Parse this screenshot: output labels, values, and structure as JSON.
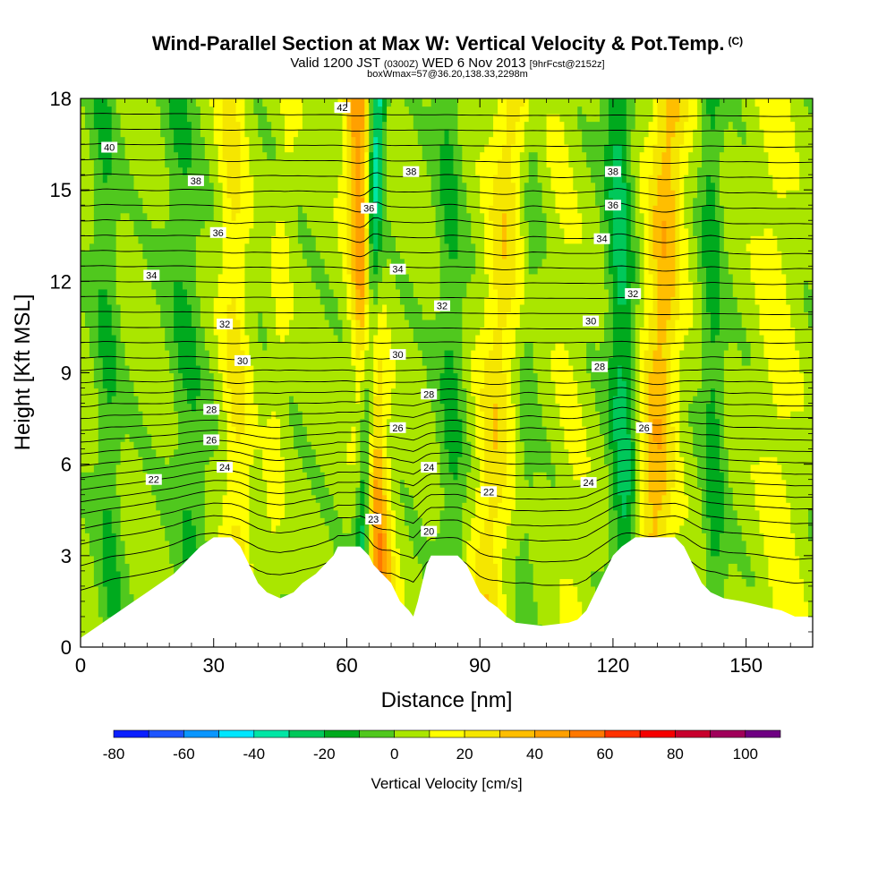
{
  "header": {
    "title": "Wind-Parallel Section at Max W: Vertical Velocity & Pot.Temp.",
    "copyright": "(C)",
    "valid_prefix": "Valid 1200 JST",
    "valid_utc": "(0300Z)",
    "valid_date": "WED 6 Nov 2013",
    "forecast": "[9hrFcst@2152z]",
    "box_info": "boxWmax=57@36.20,138.33,2298m"
  },
  "chart_data": {
    "type": "heatmap",
    "xlabel": "Distance [nm]",
    "ylabel": "Height [Kft MSL]",
    "xlim": [
      0,
      165
    ],
    "ylim": [
      0,
      18
    ],
    "x_ticks": [
      "0",
      "30",
      "60",
      "90",
      "120",
      "150"
    ],
    "y_ticks": [
      "0",
      "3",
      "6",
      "9",
      "12",
      "15",
      "18"
    ],
    "colorbar": {
      "title": "Vertical Velocity [cm/s]",
      "ticks": [
        "-80",
        "-60",
        "-40",
        "-20",
        "0",
        "20",
        "40",
        "60",
        "80",
        "100"
      ],
      "bins": [
        {
          "lo": -80,
          "hi": -70,
          "color": "#0a1fff"
        },
        {
          "lo": -70,
          "hi": -60,
          "color": "#1e55ff"
        },
        {
          "lo": -60,
          "hi": -50,
          "color": "#0a96ff"
        },
        {
          "lo": -50,
          "hi": -40,
          "color": "#00e6ff"
        },
        {
          "lo": -40,
          "hi": -30,
          "color": "#00e6a5"
        },
        {
          "lo": -30,
          "hi": -20,
          "color": "#00c85a"
        },
        {
          "lo": -20,
          "hi": -10,
          "color": "#00aa1e"
        },
        {
          "lo": -10,
          "hi": 0,
          "color": "#50c81e"
        },
        {
          "lo": 0,
          "hi": 10,
          "color": "#aae600"
        },
        {
          "lo": 10,
          "hi": 20,
          "color": "#ffff00"
        },
        {
          "lo": 20,
          "hi": 30,
          "color": "#f5e600"
        },
        {
          "lo": 30,
          "hi": 40,
          "color": "#ffbe00"
        },
        {
          "lo": 40,
          "hi": 50,
          "color": "#ffa000"
        },
        {
          "lo": 50,
          "hi": 60,
          "color": "#ff7800"
        },
        {
          "lo": 60,
          "hi": 70,
          "color": "#ff3200"
        },
        {
          "lo": 70,
          "hi": 80,
          "color": "#f50000"
        },
        {
          "lo": 80,
          "hi": 90,
          "color": "#c8002d"
        },
        {
          "lo": 90,
          "hi": 100,
          "color": "#a0005a"
        },
        {
          "lo": 100,
          "hi": 110,
          "color": "#6e0082"
        }
      ]
    },
    "updraft_bands": [
      {
        "x_base": 36,
        "x_top": 34,
        "strength": 18,
        "width": 3
      },
      {
        "x_base": 68,
        "x_top": 62,
        "strength": 45,
        "width": 3
      },
      {
        "x_base": 91,
        "x_top": 97,
        "strength": 22,
        "width": 4
      },
      {
        "x_base": 128,
        "x_top": 133,
        "strength": 32,
        "width": 4
      },
      {
        "x_base": 42,
        "x_top": 47,
        "strength": 8,
        "width": 2
      },
      {
        "x_base": 158,
        "x_top": 156,
        "strength": 10,
        "width": 4
      },
      {
        "x_base": 112,
        "x_top": 108,
        "strength": 6,
        "width": 3
      }
    ],
    "downdraft_bands": [
      {
        "x_base": 63,
        "x_top": 67,
        "strength": -45,
        "width": 1.8
      },
      {
        "x_base": 123,
        "x_top": 121,
        "strength": -28,
        "width": 3
      },
      {
        "x_base": 84,
        "x_top": 83,
        "strength": -15,
        "width": 3
      },
      {
        "x_base": 26,
        "x_top": 22,
        "strength": -14,
        "width": 4
      },
      {
        "x_base": 7,
        "x_top": 5,
        "strength": -14,
        "width": 3
      },
      {
        "x_base": 143,
        "x_top": 142,
        "strength": -18,
        "width": 2.5
      },
      {
        "x_base": 100,
        "x_top": 102,
        "strength": -8,
        "width": 2
      }
    ],
    "terrain_kft": [
      [
        0,
        0.3
      ],
      [
        3,
        0.6
      ],
      [
        6,
        0.9
      ],
      [
        9,
        1.2
      ],
      [
        12,
        1.5
      ],
      [
        15,
        1.8
      ],
      [
        18,
        2.1
      ],
      [
        21,
        2.4
      ],
      [
        23,
        2.7
      ],
      [
        25,
        3.0
      ],
      [
        27,
        3.3
      ],
      [
        30,
        3.6
      ],
      [
        34,
        3.6
      ],
      [
        36,
        3.3
      ],
      [
        38,
        2.7
      ],
      [
        39,
        2.4
      ],
      [
        40,
        2.1
      ],
      [
        42,
        1.8
      ],
      [
        45,
        1.6
      ],
      [
        48,
        1.8
      ],
      [
        50,
        2.1
      ],
      [
        53,
        2.4
      ],
      [
        55,
        2.7
      ],
      [
        57,
        3.0
      ],
      [
        58,
        3.3
      ],
      [
        63,
        3.3
      ],
      [
        65,
        3.0
      ],
      [
        66,
        2.7
      ],
      [
        68,
        2.4
      ],
      [
        70,
        2.1
      ],
      [
        71,
        1.8
      ],
      [
        72,
        1.5
      ],
      [
        74,
        1.2
      ],
      [
        75,
        1.0
      ],
      [
        76,
        1.5
      ],
      [
        77,
        2.1
      ],
      [
        78,
        2.7
      ],
      [
        79,
        3.0
      ],
      [
        85,
        3.0
      ],
      [
        87,
        2.7
      ],
      [
        88,
        2.4
      ],
      [
        89,
        2.1
      ],
      [
        90,
        1.8
      ],
      [
        92,
        1.5
      ],
      [
        94,
        1.3
      ],
      [
        96,
        1.0
      ],
      [
        98,
        0.8
      ],
      [
        104,
        0.7
      ],
      [
        110,
        0.8
      ],
      [
        112,
        0.9
      ],
      [
        114,
        1.2
      ],
      [
        115,
        1.5
      ],
      [
        116,
        1.8
      ],
      [
        117,
        2.1
      ],
      [
        118,
        2.4
      ],
      [
        119,
        2.7
      ],
      [
        120,
        3.0
      ],
      [
        122,
        3.3
      ],
      [
        125,
        3.6
      ],
      [
        134,
        3.6
      ],
      [
        136,
        3.3
      ],
      [
        137,
        3.0
      ],
      [
        138,
        2.7
      ],
      [
        139,
        2.4
      ],
      [
        140,
        2.1
      ],
      [
        142,
        1.8
      ],
      [
        145,
        1.6
      ],
      [
        149,
        1.5
      ],
      [
        152,
        1.4
      ],
      [
        155,
        1.3
      ],
      [
        158,
        1.2
      ],
      [
        161,
        1.0
      ],
      [
        164,
        1.0
      ]
    ],
    "theta_contour_labels": [
      {
        "text": "40",
        "x": 6.5,
        "y": 16.4
      },
      {
        "text": "38",
        "x": 26,
        "y": 15.3
      },
      {
        "text": "36",
        "x": 31,
        "y": 13.6
      },
      {
        "text": "34",
        "x": 16,
        "y": 12.2
      },
      {
        "text": "32",
        "x": 32.5,
        "y": 10.6
      },
      {
        "text": "30",
        "x": 36.5,
        "y": 9.4
      },
      {
        "text": "28",
        "x": 29.5,
        "y": 7.8
      },
      {
        "text": "26",
        "x": 29.5,
        "y": 6.8
      },
      {
        "text": "24",
        "x": 32.5,
        "y": 5.9
      },
      {
        "text": "22",
        "x": 16.5,
        "y": 5.5
      },
      {
        "text": "42",
        "x": 59,
        "y": 17.7
      },
      {
        "text": "38",
        "x": 74.5,
        "y": 15.6
      },
      {
        "text": "36",
        "x": 65,
        "y": 14.4
      },
      {
        "text": "34",
        "x": 71.5,
        "y": 12.4
      },
      {
        "text": "32",
        "x": 81.5,
        "y": 11.2
      },
      {
        "text": "30",
        "x": 71.5,
        "y": 9.6
      },
      {
        "text": "28",
        "x": 78.5,
        "y": 8.3
      },
      {
        "text": "26",
        "x": 71.5,
        "y": 7.2
      },
      {
        "text": "24",
        "x": 78.5,
        "y": 5.9
      },
      {
        "text": "23",
        "x": 66,
        "y": 4.2
      },
      {
        "text": "20",
        "x": 78.5,
        "y": 3.8
      },
      {
        "text": "22",
        "x": 92,
        "y": 5.1
      },
      {
        "text": "24",
        "x": 114.5,
        "y": 5.4
      },
      {
        "text": "38",
        "x": 120,
        "y": 15.6
      },
      {
        "text": "36",
        "x": 120,
        "y": 14.5
      },
      {
        "text": "34",
        "x": 117.5,
        "y": 13.4
      },
      {
        "text": "32",
        "x": 124.5,
        "y": 11.6
      },
      {
        "text": "30",
        "x": 115,
        "y": 10.7
      },
      {
        "text": "28",
        "x": 117,
        "y": 9.2
      },
      {
        "text": "26",
        "x": 127,
        "y": 7.2
      }
    ],
    "theta_contours_kft": [
      1.8,
      2.6,
      3.3,
      3.8,
      4.3,
      4.7,
      5.1,
      5.5,
      5.9,
      6.3,
      6.7,
      7.1,
      7.5,
      7.9,
      8.3,
      8.7,
      9.1,
      9.5,
      10.0,
      10.5,
      11.0,
      11.5,
      12.0,
      12.5,
      13.0,
      13.5,
      14.0,
      14.5,
      15.0,
      15.5,
      16.0,
      16.5,
      17.0,
      17.5
    ]
  }
}
